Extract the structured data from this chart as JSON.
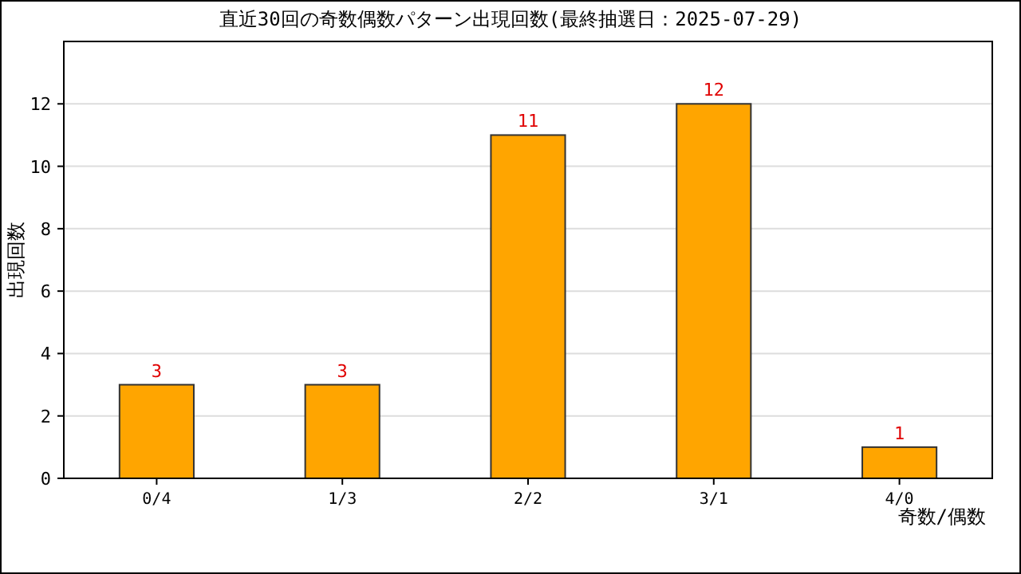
{
  "chart_data": {
    "type": "bar",
    "title": "直近30回の奇数偶数パターン出現回数(最終抽選日：2025-07-29)",
    "categories": [
      "0/4",
      "1/3",
      "2/2",
      "3/1",
      "4/0"
    ],
    "values": [
      3,
      3,
      11,
      12,
      1
    ],
    "color": "#ffa500",
    "xlabel": "奇数/偶数",
    "ylabel": "出現回数",
    "ylim": [
      0,
      14
    ],
    "yticks": [
      0,
      2,
      4,
      6,
      8,
      10,
      12
    ],
    "grid": "y",
    "data_labels": true
  }
}
